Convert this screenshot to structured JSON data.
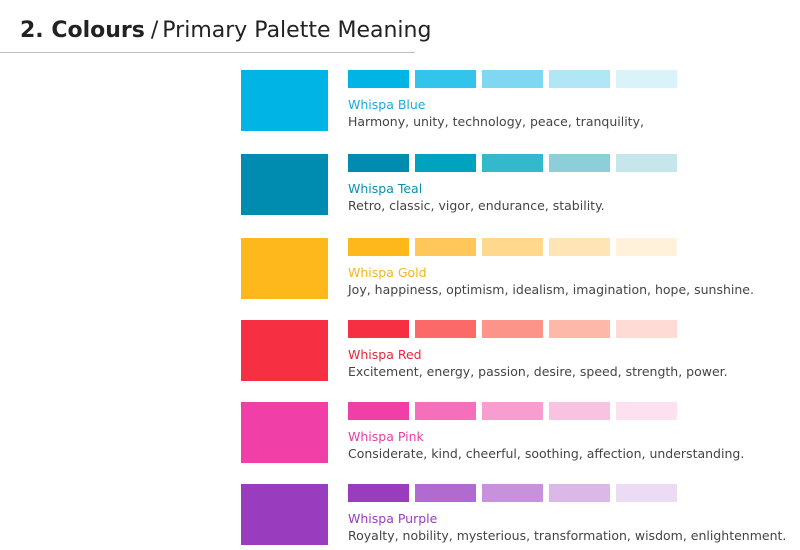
{
  "header": {
    "section_number": "2. Colours",
    "separator": "/",
    "subtitle": "Primary Palette Meaning"
  },
  "palette": [
    {
      "name": "Whispa Blue",
      "description": "Harmony, unity, technology, peace, tranquility,",
      "color": "#00b4e6",
      "name_color": "#1aa9dd",
      "tints": [
        "#00b4e6",
        "#33c4ec",
        "#80d7f1",
        "#b0e6f6",
        "#daf3fa"
      ]
    },
    {
      "name": "Whispa Teal",
      "description": "Retro, classic, vigor, endurance, stability.",
      "color": "#008bb0",
      "name_color": "#0a8fb3",
      "tints": [
        "#008bb0",
        "#00a3bf",
        "#33b8cc",
        "#8ccfd9",
        "#c5e6ea"
      ]
    },
    {
      "name": "Whispa Gold",
      "description": "Joy, happiness, optimism, idealism, imagination, hope, sunshine.",
      "color": "#ffb81c",
      "name_color": "#f5b51f",
      "tints": [
        "#ffb81c",
        "#ffc75a",
        "#ffd88e",
        "#ffe5b5",
        "#fff1da"
      ]
    },
    {
      "name": "Whispa Red",
      "description": "Excitement, energy, passion, desire, speed, strength, power.",
      "color": "#f72f43",
      "name_color": "#e8263a",
      "tints": [
        "#f72f43",
        "#fb6a69",
        "#fd948a",
        "#fdb8aa",
        "#fedcd5"
      ]
    },
    {
      "name": "Whispa Pink",
      "description": "Considerate, kind, cheerful, soothing, affection, understanding.",
      "color": "#f040a7",
      "name_color": "#e83ea2",
      "tints": [
        "#f040a7",
        "#f56fbb",
        "#f89dcf",
        "#fac2e1",
        "#fde1f0"
      ]
    },
    {
      "name": "Whispa Purple",
      "description": "Royalty, nobility, mysterious, transformation, wisdom, enlightenment.",
      "color": "#9a3cbe",
      "name_color": "#9a3cbe",
      "tints": [
        "#9a3cbe",
        "#b16ad0",
        "#c792db",
        "#dcb8e8",
        "#ecdcf3"
      ]
    }
  ]
}
